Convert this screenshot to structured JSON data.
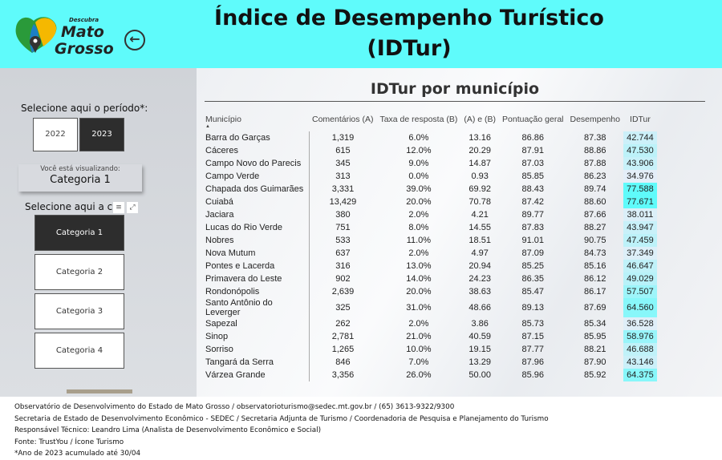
{
  "header": {
    "title_line1": "Índice de Desempenho Turístico",
    "title_line2": "(IDTur)",
    "logo_text": "Descubra Mato Grosso",
    "back_icon": "arrow-left-circle-icon"
  },
  "colors": {
    "header": "#5ffbfb",
    "idtur_high": "#5ffbfb",
    "idtur_low": "#e4eef8"
  },
  "left": {
    "period_label": "Selecione aqui o período*:",
    "years": [
      "2022",
      "2023"
    ],
    "selected_year": "2023",
    "viewing_label": "Você está visualizando:",
    "viewing_value": "Categoria 1",
    "category_label": "Selecione aqui a categoria",
    "categories": [
      "Categoria 1",
      "Categoria 2",
      "Categoria 3",
      "Categoria 4"
    ],
    "selected_category": "Categoria 1"
  },
  "table": {
    "title": "IDTur por município",
    "columns": [
      "Município",
      "Comentários (A)",
      "Taxa de resposta (B)",
      "(A) e (B)",
      "Pontuação geral",
      "Desempenho",
      "IDTur"
    ],
    "rows": [
      [
        "Barra do Garças",
        "1,319",
        "6.0%",
        "13.16",
        "86.86",
        "87.38",
        "42.744"
      ],
      [
        "Cáceres",
        "615",
        "12.0%",
        "20.29",
        "87.91",
        "88.86",
        "47.530"
      ],
      [
        "Campo Novo do Parecis",
        "345",
        "9.0%",
        "14.87",
        "87.03",
        "87.88",
        "43.906"
      ],
      [
        "Campo Verde",
        "313",
        "0.0%",
        "0.93",
        "85.85",
        "86.23",
        "34.976"
      ],
      [
        "Chapada dos Guimarães",
        "3,331",
        "39.0%",
        "69.92",
        "88.43",
        "89.74",
        "77.588"
      ],
      [
        "Cuiabá",
        "13,429",
        "20.0%",
        "70.78",
        "87.42",
        "88.60",
        "77.671"
      ],
      [
        "Jaciara",
        "380",
        "2.0%",
        "4.21",
        "89.77",
        "87.66",
        "38.011"
      ],
      [
        "Lucas do Rio Verde",
        "751",
        "8.0%",
        "14.55",
        "87.83",
        "88.27",
        "43.947"
      ],
      [
        "Nobres",
        "533",
        "11.0%",
        "18.51",
        "91.01",
        "90.75",
        "47.459"
      ],
      [
        "Nova Mutum",
        "637",
        "2.0%",
        "4.97",
        "87.09",
        "84.73",
        "37.349"
      ],
      [
        "Pontes e Lacerda",
        "316",
        "13.0%",
        "20.94",
        "85.25",
        "85.16",
        "46.647"
      ],
      [
        "Primavera do Leste",
        "902",
        "14.0%",
        "24.23",
        "86.35",
        "86.12",
        "49.029"
      ],
      [
        "Rondonópolis",
        "2,639",
        "20.0%",
        "38.63",
        "85.47",
        "86.17",
        "57.507"
      ],
      [
        "Santo Antônio do Leverger",
        "325",
        "31.0%",
        "48.66",
        "89.13",
        "87.69",
        "64.560"
      ],
      [
        "Sapezal",
        "262",
        "2.0%",
        "3.86",
        "85.73",
        "85.34",
        "36.528"
      ],
      [
        "Sinop",
        "2,781",
        "21.0%",
        "40.59",
        "87.15",
        "85.95",
        "58.976"
      ],
      [
        "Sorriso",
        "1,265",
        "10.0%",
        "19.15",
        "87.77",
        "88.21",
        "46.688"
      ],
      [
        "Tangará da Serra",
        "846",
        "7.0%",
        "13.29",
        "87.96",
        "87.90",
        "43.146"
      ],
      [
        "Várzea Grande",
        "3,356",
        "26.0%",
        "50.00",
        "85.96",
        "85.92",
        "64.375"
      ]
    ]
  },
  "footer": [
    "Observatório de Desenvolvimento do Estado de Mato Grosso / observatorioturismo@sedec.mt.gov.br / (65) 3613-9322/9300",
    "Secretaria de Estado de Desenvolvimento Econômico - SEDEC / Secretaria Adjunta de Turismo / Coordenadoria de Pesquisa e Planejamento do Turismo",
    "Responsável Técnico: Leandro Lima (Analista de Desenvolvimento Econômico e Social)",
    "Fonte: TrustYou / Ícone Turismo",
    "*Ano de 2023 acumulado até 30/04"
  ]
}
